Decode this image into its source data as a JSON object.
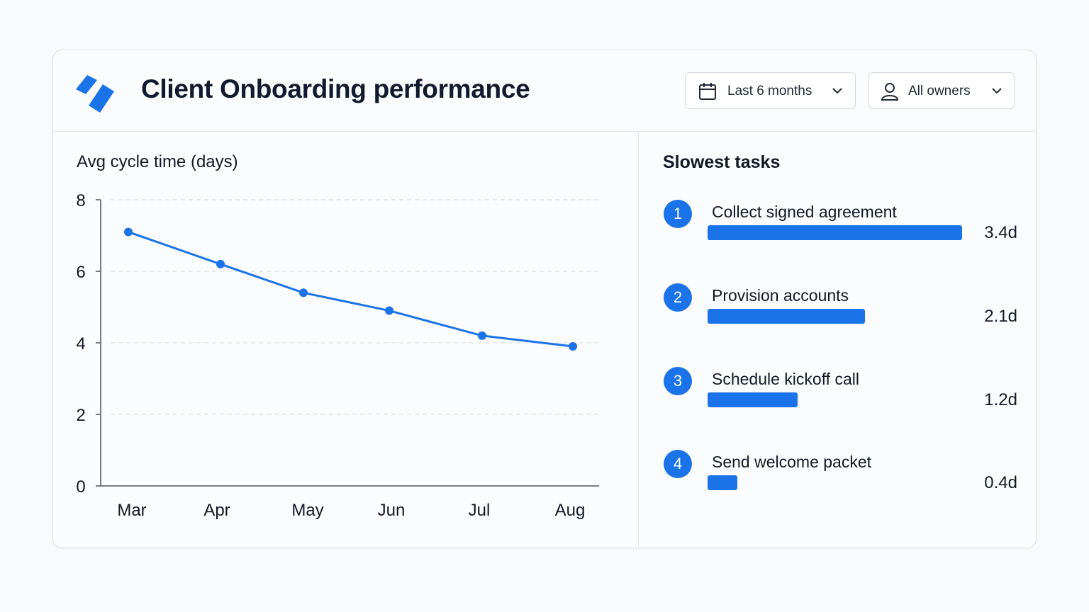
{
  "header": {
    "title": "Client Onboarding performance",
    "logo_icon": "brand-logo",
    "brand_color": "#1a73e8",
    "filters": {
      "date_range": {
        "label": "Last 6 months",
        "icon": "calendar-icon"
      },
      "owner": {
        "label": "All owners",
        "icon": "user-icon"
      }
    }
  },
  "chart_data": {
    "type": "line",
    "title": "Avg cycle time (days)",
    "categories": [
      "Mar",
      "Apr",
      "May",
      "Jun",
      "Jul",
      "Aug"
    ],
    "series": [
      {
        "values": [
          7.1,
          6.2,
          5.4,
          4.9,
          4.2,
          3.9
        ],
        "color": "#1a73e8"
      }
    ],
    "ylim": [
      0,
      8
    ],
    "yticks": [
      0,
      2,
      4,
      6,
      8
    ],
    "grid": true,
    "xlabel": "",
    "ylabel": ""
  },
  "slowest_tasks": {
    "title": "Slowest tasks",
    "max_days": 3.4,
    "items": [
      {
        "rank": "1",
        "name": "Collect signed agreement",
        "days": 3.4,
        "value_label": "3.4d"
      },
      {
        "rank": "2",
        "name": "Provision accounts",
        "days": 2.1,
        "value_label": "2.1d"
      },
      {
        "rank": "3",
        "name": "Schedule kickoff call",
        "days": 1.2,
        "value_label": "1.2d"
      },
      {
        "rank": "4",
        "name": "Send welcome packet",
        "days": 0.4,
        "value_label": "0.4d"
      }
    ]
  }
}
